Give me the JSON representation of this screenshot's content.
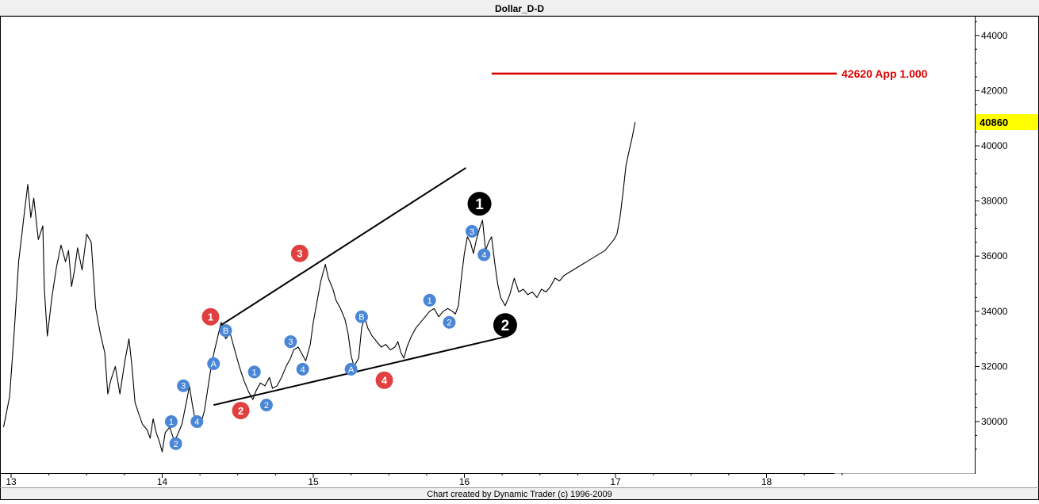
{
  "window": {
    "title": "Dollar_D-D"
  },
  "footer": {
    "credit": "Chart created by Dynamic Trader  (c) 1996-2009"
  },
  "colors": {
    "background": "#ffffff",
    "price_line": "#000000",
    "target_line": "#dd0000",
    "minor_wave": "#4a86d6",
    "intermediate_wave": "#e04040",
    "primary_wave": "#000000",
    "last_price_highlight": "#ffff00"
  },
  "chart_data": {
    "type": "line",
    "title": "Dollar_D-D",
    "xlabel": "",
    "ylabel": "",
    "xlim": [
      12.95,
      18.6
    ],
    "ylim": [
      28600,
      44600
    ],
    "x_ticks": [
      "13",
      "14",
      "15",
      "16",
      "17",
      "18"
    ],
    "x_tick_values": [
      13,
      14,
      15,
      16,
      17,
      18
    ],
    "y_ticks": [
      "30000",
      "32000",
      "34000",
      "36000",
      "38000",
      "40000",
      "42000",
      "44000"
    ],
    "y_tick_values": [
      30000,
      32000,
      34000,
      36000,
      38000,
      40000,
      42000,
      44000
    ],
    "grid": false,
    "series": [
      {
        "values_xy": [
          [
            12.95,
            29800
          ],
          [
            12.99,
            30900
          ],
          [
            13.02,
            33200
          ],
          [
            13.05,
            35800
          ],
          [
            13.08,
            37200
          ],
          [
            13.11,
            38600
          ],
          [
            13.13,
            37400
          ],
          [
            13.15,
            38100
          ],
          [
            13.18,
            36600
          ],
          [
            13.21,
            37100
          ],
          [
            13.22,
            34800
          ],
          [
            13.24,
            33100
          ],
          [
            13.27,
            34500
          ],
          [
            13.3,
            35600
          ],
          [
            13.33,
            36400
          ],
          [
            13.36,
            35800
          ],
          [
            13.38,
            36200
          ],
          [
            13.4,
            34900
          ],
          [
            13.42,
            35500
          ],
          [
            13.44,
            36300
          ],
          [
            13.47,
            35500
          ],
          [
            13.5,
            36800
          ],
          [
            13.53,
            36500
          ],
          [
            13.56,
            34100
          ],
          [
            13.59,
            33200
          ],
          [
            13.62,
            32500
          ],
          [
            13.64,
            31000
          ],
          [
            13.66,
            31500
          ],
          [
            13.69,
            32000
          ],
          [
            13.72,
            31000
          ],
          [
            13.75,
            32100
          ],
          [
            13.78,
            33000
          ],
          [
            13.8,
            32000
          ],
          [
            13.82,
            30700
          ],
          [
            13.85,
            30200
          ],
          [
            13.87,
            29900
          ],
          [
            13.9,
            29700
          ],
          [
            13.92,
            29400
          ],
          [
            13.94,
            30100
          ],
          [
            13.96,
            29600
          ],
          [
            13.98,
            29300
          ],
          [
            14.0,
            28900
          ],
          [
            14.02,
            29600
          ],
          [
            14.05,
            29800
          ],
          [
            14.08,
            29300
          ],
          [
            14.1,
            29500
          ],
          [
            14.13,
            29900
          ],
          [
            14.16,
            30700
          ],
          [
            14.18,
            31300
          ],
          [
            14.2,
            30600
          ],
          [
            14.22,
            30000
          ],
          [
            14.25,
            29800
          ],
          [
            14.28,
            30400
          ],
          [
            14.31,
            31500
          ],
          [
            14.33,
            32200
          ],
          [
            14.36,
            32900
          ],
          [
            14.39,
            33600
          ],
          [
            14.42,
            33000
          ],
          [
            14.45,
            33200
          ],
          [
            14.48,
            32600
          ],
          [
            14.51,
            32000
          ],
          [
            14.54,
            31500
          ],
          [
            14.57,
            31100
          ],
          [
            14.6,
            30800
          ],
          [
            14.62,
            31100
          ],
          [
            14.65,
            31400
          ],
          [
            14.68,
            31300
          ],
          [
            14.71,
            31600
          ],
          [
            14.73,
            31200
          ],
          [
            14.76,
            31300
          ],
          [
            14.79,
            31600
          ],
          [
            14.82,
            32000
          ],
          [
            14.85,
            32300
          ],
          [
            14.87,
            32600
          ],
          [
            14.9,
            32700
          ],
          [
            14.93,
            32400
          ],
          [
            14.95,
            32200
          ],
          [
            14.98,
            32800
          ],
          [
            15.0,
            33600
          ],
          [
            15.02,
            34200
          ],
          [
            15.05,
            35100
          ],
          [
            15.08,
            35700
          ],
          [
            15.1,
            35200
          ],
          [
            15.13,
            34800
          ],
          [
            15.15,
            34400
          ],
          [
            15.18,
            34100
          ],
          [
            15.21,
            33700
          ],
          [
            15.23,
            33200
          ],
          [
            15.25,
            32400
          ],
          [
            15.27,
            32000
          ],
          [
            15.3,
            32300
          ],
          [
            15.32,
            33400
          ],
          [
            15.34,
            33800
          ],
          [
            15.36,
            33400
          ],
          [
            15.39,
            33100
          ],
          [
            15.42,
            32900
          ],
          [
            15.45,
            32700
          ],
          [
            15.48,
            32800
          ],
          [
            15.51,
            32600
          ],
          [
            15.54,
            32700
          ],
          [
            15.56,
            32900
          ],
          [
            15.58,
            32500
          ],
          [
            15.6,
            32300
          ],
          [
            15.62,
            32700
          ],
          [
            15.65,
            33100
          ],
          [
            15.68,
            33400
          ],
          [
            15.71,
            33600
          ],
          [
            15.74,
            33800
          ],
          [
            15.77,
            34000
          ],
          [
            15.8,
            34100
          ],
          [
            15.83,
            33800
          ],
          [
            15.86,
            34000
          ],
          [
            15.89,
            34100
          ],
          [
            15.92,
            34000
          ],
          [
            15.94,
            33900
          ],
          [
            15.96,
            34200
          ],
          [
            15.98,
            35200
          ],
          [
            16.0,
            36100
          ],
          [
            16.02,
            36700
          ],
          [
            16.04,
            36500
          ],
          [
            16.06,
            36100
          ],
          [
            16.08,
            36600
          ],
          [
            16.1,
            37000
          ],
          [
            16.12,
            37300
          ],
          [
            16.14,
            36200
          ],
          [
            16.16,
            36500
          ],
          [
            16.18,
            36700
          ],
          [
            16.2,
            35800
          ],
          [
            16.22,
            35000
          ],
          [
            16.24,
            34500
          ],
          [
            16.27,
            34200
          ],
          [
            16.3,
            34600
          ],
          [
            16.33,
            35200
          ],
          [
            16.36,
            34700
          ],
          [
            16.39,
            34800
          ],
          [
            16.42,
            34600
          ],
          [
            16.45,
            34700
          ],
          [
            16.48,
            34500
          ],
          [
            16.51,
            34800
          ],
          [
            16.54,
            34700
          ],
          [
            16.57,
            34900
          ],
          [
            16.6,
            35200
          ],
          [
            16.63,
            35100
          ],
          [
            16.66,
            35300
          ],
          [
            16.69,
            35400
          ],
          [
            16.72,
            35500
          ],
          [
            16.75,
            35600
          ],
          [
            16.78,
            35700
          ],
          [
            16.81,
            35800
          ],
          [
            16.84,
            35900
          ],
          [
            16.87,
            36000
          ],
          [
            16.9,
            36100
          ],
          [
            16.93,
            36200
          ],
          [
            16.96,
            36400
          ],
          [
            16.99,
            36600
          ],
          [
            17.01,
            36800
          ],
          [
            17.03,
            37400
          ],
          [
            17.05,
            38300
          ],
          [
            17.07,
            39300
          ],
          [
            17.09,
            39800
          ],
          [
            17.11,
            40300
          ],
          [
            17.13,
            40860
          ]
        ]
      }
    ],
    "trendlines": [
      {
        "from": [
          14.39,
          33500
        ],
        "to": [
          16.01,
          39200
        ]
      },
      {
        "from": [
          14.34,
          30600
        ],
        "to": [
          16.29,
          33100
        ]
      }
    ],
    "target_line": {
      "value": 42620,
      "from_x": 16.18,
      "to_x": 18.6,
      "label": "42620 App 1.000"
    },
    "last_price": {
      "value": 40860,
      "label": "40860"
    },
    "wave_labels": [
      {
        "label": "1",
        "degree": "minor",
        "x": 14.06,
        "y": 30000
      },
      {
        "label": "2",
        "degree": "minor",
        "x": 14.09,
        "y": 29200
      },
      {
        "label": "3",
        "degree": "minor",
        "x": 14.14,
        "y": 31300
      },
      {
        "label": "4",
        "degree": "minor",
        "x": 14.23,
        "y": 30000
      },
      {
        "label": "A",
        "degree": "minor",
        "x": 14.34,
        "y": 32100
      },
      {
        "label": "B",
        "degree": "minor",
        "x": 14.42,
        "y": 33300
      },
      {
        "label": "1",
        "degree": "minor",
        "x": 14.61,
        "y": 31800
      },
      {
        "label": "2",
        "degree": "minor",
        "x": 14.69,
        "y": 30600
      },
      {
        "label": "3",
        "degree": "minor",
        "x": 14.85,
        "y": 32900
      },
      {
        "label": "4",
        "degree": "minor",
        "x": 14.93,
        "y": 31900
      },
      {
        "label": "A",
        "degree": "minor",
        "x": 15.25,
        "y": 31900
      },
      {
        "label": "B",
        "degree": "minor",
        "x": 15.32,
        "y": 33800
      },
      {
        "label": "1",
        "degree": "minor",
        "x": 15.77,
        "y": 34400
      },
      {
        "label": "2",
        "degree": "minor",
        "x": 15.9,
        "y": 33600
      },
      {
        "label": "3",
        "degree": "minor",
        "x": 16.05,
        "y": 36900
      },
      {
        "label": "4",
        "degree": "minor",
        "x": 16.13,
        "y": 36050
      },
      {
        "label": "1",
        "degree": "intermediate",
        "x": 14.32,
        "y": 33800
      },
      {
        "label": "2",
        "degree": "intermediate",
        "x": 14.52,
        "y": 30400
      },
      {
        "label": "3",
        "degree": "intermediate",
        "x": 14.91,
        "y": 36100
      },
      {
        "label": "4",
        "degree": "intermediate",
        "x": 15.47,
        "y": 31500
      },
      {
        "label": "1",
        "degree": "primary",
        "x": 16.1,
        "y": 37900
      },
      {
        "label": "2",
        "degree": "primary",
        "x": 16.27,
        "y": 33500
      }
    ]
  }
}
